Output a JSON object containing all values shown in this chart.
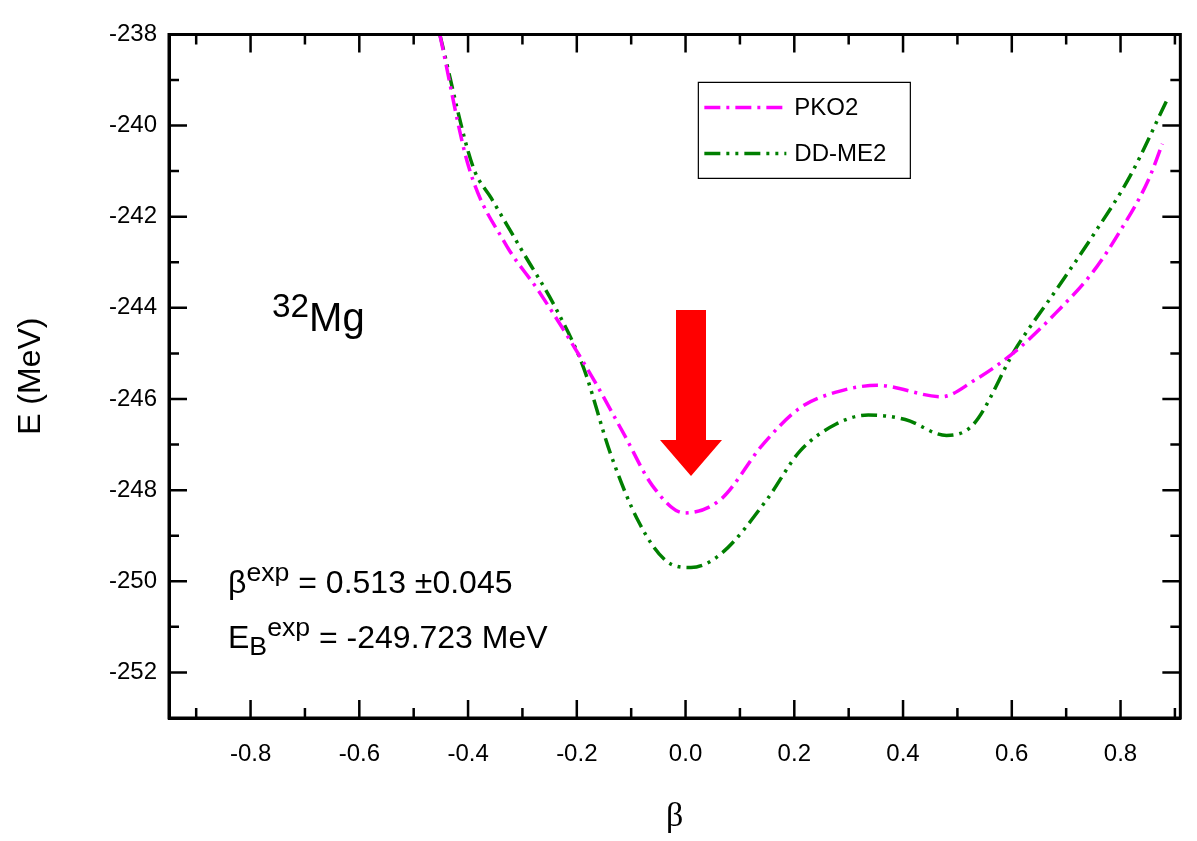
{
  "chart_data": {
    "type": "line",
    "xlabel": "β",
    "ylabel": "E (MeV)",
    "xlim": [
      -0.95,
      0.91
    ],
    "ylim": [
      -253,
      -238
    ],
    "xticks": [
      {
        "value": -0.9,
        "label": null
      },
      -0.8,
      {
        "value": -0.7,
        "label": null
      },
      -0.6,
      {
        "value": -0.5,
        "label": null
      },
      -0.4,
      {
        "value": -0.3,
        "label": null
      },
      -0.2,
      {
        "value": -0.1,
        "label": null
      },
      {
        "value": 0,
        "label": "0.0"
      },
      {
        "value": 0.1,
        "label": null
      },
      0.2,
      {
        "value": 0.3,
        "label": null
      },
      0.4,
      {
        "value": 0.5,
        "label": null
      },
      0.6,
      {
        "value": 0.7,
        "label": null
      },
      0.8,
      {
        "value": 0.9,
        "label": null
      }
    ],
    "yticks": [
      -252,
      {
        "value": -251,
        "label": null
      },
      -250,
      {
        "value": -249,
        "label": null
      },
      -248,
      {
        "value": -247,
        "label": null
      },
      -246,
      {
        "value": -245,
        "label": null
      },
      -244,
      {
        "value": -243,
        "label": null
      },
      -242,
      {
        "value": -241,
        "label": null
      },
      -240,
      {
        "value": -239,
        "label": null
      },
      -238
    ],
    "grid": false,
    "legend": "top right",
    "marker": "none",
    "line_style": "dashed",
    "annotations": [
      "$^{32}$Mg",
      "β$^{exp}$ = 0.513 ±0.045",
      "E$_{B}$$^{exp}$ = -249.723 MeV"
    ],
    "series": [
      {
        "name": "PKO2",
        "color": "#ff00ff",
        "x": [
          -0.452,
          -0.399,
          -0.331,
          -0.272,
          -0.213,
          -0.163,
          -0.112,
          -0.061,
          -0.002,
          0.065,
          0.142,
          0.21,
          0.277,
          0.353,
          0.471,
          0.53,
          0.607,
          0.682,
          0.75,
          0.8,
          0.851,
          0.877
        ],
        "values": [
          -238.0,
          -240.9,
          -242.6,
          -243.6,
          -244.7,
          -245.7,
          -246.8,
          -247.9,
          -248.5,
          -248.2,
          -247.0,
          -246.2,
          -245.85,
          -245.7,
          -245.95,
          -245.6,
          -244.95,
          -244.1,
          -243.2,
          -242.3,
          -241.2,
          -240.4
        ]
      },
      {
        "name": "DD-ME2",
        "color": "#007f00",
        "x": [
          -0.452,
          -0.391,
          -0.357,
          -0.298,
          -0.239,
          -0.188,
          -0.138,
          -0.086,
          -0.036,
          0.01,
          0.065,
          0.15,
          0.21,
          0.277,
          0.336,
          0.404,
          0.48,
          0.53,
          0.607,
          0.682,
          0.75,
          0.818,
          0.885
        ],
        "values": [
          -238.0,
          -240.9,
          -241.6,
          -242.8,
          -244.0,
          -245.3,
          -247.2,
          -248.7,
          -249.55,
          -249.7,
          -249.4,
          -248.2,
          -247.15,
          -246.55,
          -246.35,
          -246.45,
          -246.8,
          -246.55,
          -244.9,
          -243.6,
          -242.4,
          -241.1,
          -239.45
        ]
      }
    ]
  }
}
